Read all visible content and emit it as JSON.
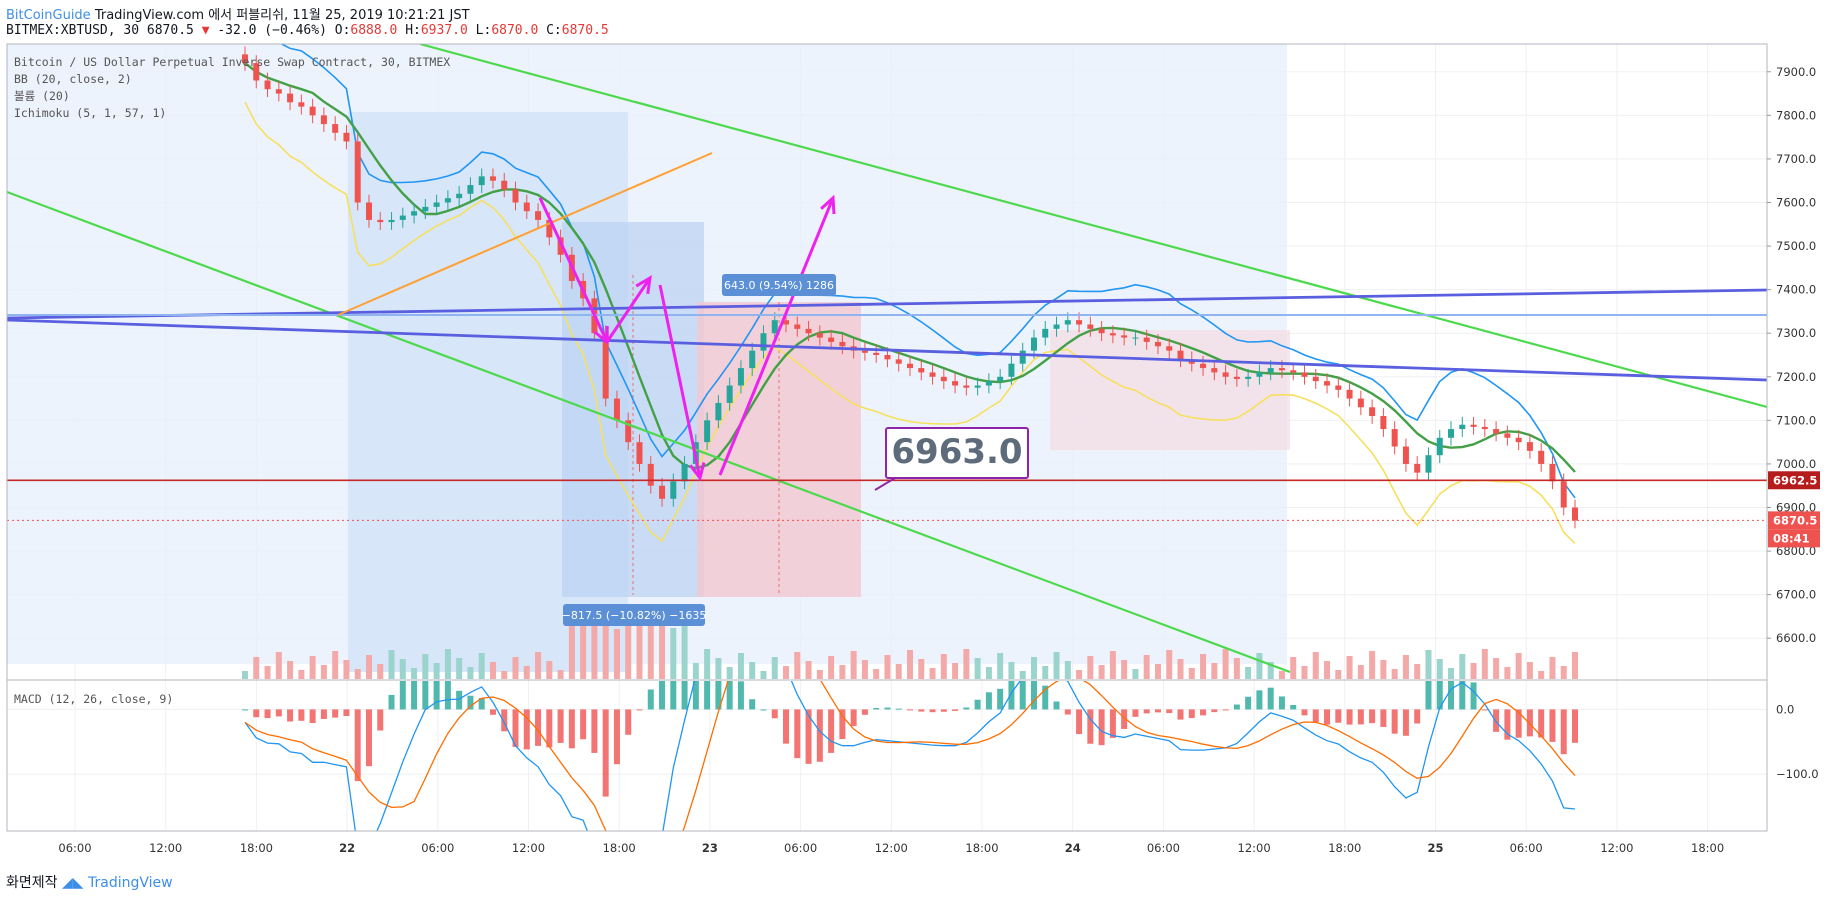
{
  "header": {
    "brand": "BitCoinGuide",
    "published": "TradingView.com 에서 퍼블리쉬, 11월 25, 2019 10:21:21 JST",
    "symbol": "BITMEX:XBTUSD, 30",
    "last": "6870.5",
    "change": "-32.0 (−0.46%)",
    "open_label": "O:",
    "open": "6888.0",
    "high_label": "H:",
    "high": "6937.0",
    "low_label": "L:",
    "low": "6870.0",
    "close_label": "C:",
    "close": "6870.5"
  },
  "legend": {
    "title": "Bitcoin / US Dollar Perpetual Inverse Swap Contract, 30, BITMEX",
    "bb": "BB (20, close, 2)",
    "volume": "볼륨 (20)",
    "ichimoku": "Ichimoku (5, 1, 57, 1)",
    "macd": "MACD (12, 26, close, 9)"
  },
  "footer": {
    "prefix": "화면제작",
    "brand": "TradingView"
  },
  "colors": {
    "up": "#26a69a",
    "down": "#ef5350",
    "bb": "#2196f3",
    "ichimoku_cloud": "#c9ddf7",
    "green_line": "#4dd94d",
    "blue_line": "#5a5fe0",
    "light_blue_line": "#8fb4f0",
    "orange_line": "#ffa033",
    "magenta": "#ee22ee",
    "price_tag": "#b71c1c"
  },
  "chart_data": {
    "type": "candlestick",
    "instrument": "BITMEX:XBTUSD",
    "interval": "30",
    "x_ticks": [
      "06:00",
      "12:00",
      "18:00",
      "22",
      "06:00",
      "12:00",
      "18:00",
      "23",
      "06:00",
      "12:00",
      "18:00",
      "24",
      "06:00",
      "12:00",
      "18:00",
      "25",
      "06:00",
      "12:00",
      "18:00"
    ],
    "y_ticks": [
      "7900.0",
      "7800.0",
      "7700.0",
      "7600.0",
      "7500.0",
      "7400.0",
      "7300.0",
      "7200.0",
      "7100.0",
      "7000.0",
      "6900.0",
      "6800.0",
      "6700.0",
      "6600.0"
    ],
    "ylim": [
      6550,
      7950
    ],
    "macd_ticks": [
      "0.0",
      "−100.0"
    ],
    "macd_ylim": [
      -180,
      30
    ],
    "price_labels": {
      "horizontal_line": "6962.5",
      "last": "6870.5",
      "countdown": "08:41"
    },
    "annotations": {
      "callout": "6963.0",
      "range_up": "643.0 (9.54%) 1286",
      "range_down": "−817.5 (−10.82%) −1635"
    },
    "close_series": [
      7920,
      7880,
      7860,
      7850,
      7830,
      7820,
      7800,
      7780,
      7760,
      7740,
      7600,
      7560,
      7555,
      7560,
      7570,
      7580,
      7590,
      7600,
      7610,
      7620,
      7640,
      7660,
      7650,
      7630,
      7600,
      7580,
      7560,
      7520,
      7480,
      7420,
      7380,
      7300,
      7150,
      7100,
      7050,
      7000,
      6950,
      6920,
      6960,
      7000,
      7050,
      7100,
      7140,
      7180,
      7220,
      7260,
      7300,
      7330,
      7320,
      7310,
      7300,
      7290,
      7280,
      7270,
      7260,
      7255,
      7250,
      7240,
      7230,
      7220,
      7210,
      7200,
      7190,
      7180,
      7175,
      7180,
      7190,
      7200,
      7230,
      7260,
      7290,
      7310,
      7320,
      7330,
      7320,
      7310,
      7300,
      7295,
      7290,
      7290,
      7280,
      7270,
      7260,
      7240,
      7230,
      7220,
      7210,
      7200,
      7195,
      7200,
      7210,
      7220,
      7215,
      7210,
      7200,
      7190,
      7180,
      7170,
      7150,
      7130,
      7110,
      7080,
      7040,
      7000,
      6980,
      7020,
      7060,
      7080,
      7090,
      7085,
      7080,
      7070,
      7060,
      7050,
      7030,
      7000,
      6960,
      6900,
      6870
    ]
  }
}
